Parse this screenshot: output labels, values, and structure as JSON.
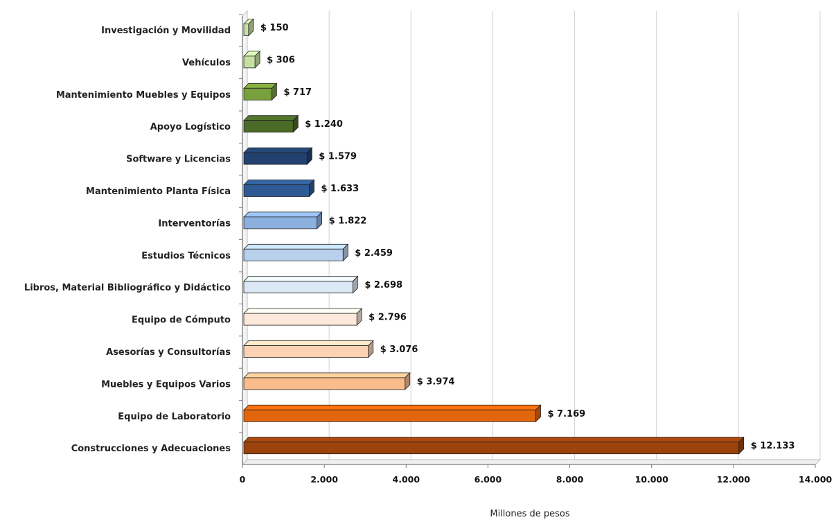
{
  "chart_data": {
    "type": "bar",
    "orientation": "horizontal",
    "style": "3d",
    "title": "",
    "xlabel": "Millones de pesos",
    "ylabel": "",
    "xlim": [
      0,
      14000
    ],
    "grid": "vertical",
    "value_prefix": "$ ",
    "x_ticks": [
      "0",
      "2.000",
      "4.000",
      "6.000",
      "8.000",
      "10.000",
      "12.000",
      "14.000"
    ],
    "x_tick_values": [
      0,
      2000,
      4000,
      6000,
      8000,
      10000,
      12000,
      14000
    ],
    "categories": [
      "Investigación y Movilidad",
      "Vehículos",
      "Mantenimiento Muebles y Equipos",
      "Apoyo Logístico",
      "Software y Licencias",
      "Mantenimiento Planta Física",
      "Interventorías",
      "Estudios Técnicos",
      "Libros, Material Bibliográfico y Didáctico",
      "Equipo de Cómputo",
      "Asesorías y Consultorías",
      "Muebles y Equipos  Varios",
      "Equipo de Laboratorio",
      "Construcciones y Adecuaciones"
    ],
    "values": [
      150,
      306,
      717,
      1240,
      1579,
      1633,
      1822,
      2459,
      2698,
      2796,
      3076,
      3974,
      7169,
      12133
    ],
    "value_labels": [
      "$ 150",
      "$ 306",
      "$ 717",
      "$ 1.240",
      "$ 1.579",
      "$ 1.633",
      "$ 1.822",
      "$ 2.459",
      "$ 2.698",
      "$ 2.796",
      "$ 3.076",
      "$ 3.974",
      "$ 7.169",
      "$ 12.133"
    ],
    "colors": [
      "#c8e0a8",
      "#c6e0a4",
      "#78a03c",
      "#4a6a28",
      "#22416e",
      "#2e5a94",
      "#8cb0de",
      "#b8d0ec",
      "#dce8f6",
      "#fde8dc",
      "#fcd2b4",
      "#fbbc8c",
      "#e2660c",
      "#9c420c"
    ]
  }
}
